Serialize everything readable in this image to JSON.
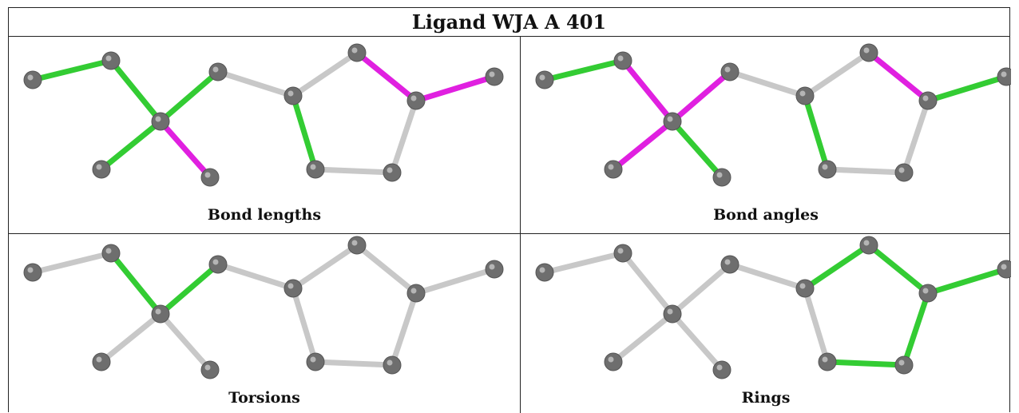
{
  "title": "Ligand WJA A 401",
  "colors": {
    "green": "#33cc33",
    "magenta": "#e020e0",
    "grey": "#c8c8c8",
    "atom": "#6e6e6e"
  },
  "panels": [
    {
      "caption": "Bond lengths",
      "bond_colors": [
        "green",
        "green",
        "green",
        "magenta",
        "green",
        "grey",
        "grey",
        "magenta",
        "magenta",
        "green",
        "grey",
        "grey",
        "green"
      ]
    },
    {
      "caption": "Bond angles",
      "bond_colors": [
        "green",
        "magenta",
        "magenta",
        "green",
        "magenta",
        "grey",
        "grey",
        "magenta",
        "green",
        "green",
        "grey",
        "grey",
        "magenta"
      ]
    },
    {
      "caption": "Torsions",
      "bond_colors": [
        "grey",
        "green",
        "grey",
        "grey",
        "green",
        "grey",
        "grey",
        "grey",
        "grey",
        "grey",
        "grey",
        "grey",
        "grey"
      ]
    },
    {
      "caption": "Rings",
      "bond_colors": [
        "grey",
        "grey",
        "grey",
        "grey",
        "grey",
        "grey",
        "green",
        "green",
        "green",
        "grey",
        "green",
        "green",
        "green"
      ]
    }
  ]
}
